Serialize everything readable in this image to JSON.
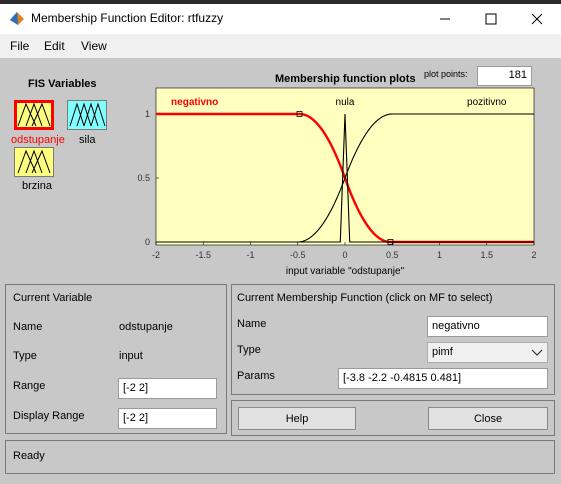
{
  "window": {
    "title": "Membership Function Editor: rtfuzzy"
  },
  "menu": [
    "File",
    "Edit",
    "View"
  ],
  "fis_variables": {
    "heading": "FIS Variables",
    "items": [
      {
        "label": "odstupanje",
        "selected": true
      },
      {
        "label": "sila",
        "selected": false
      },
      {
        "label": "brzina",
        "selected": false
      }
    ]
  },
  "plot": {
    "title": "Membership function plots",
    "plot_points_label": "plot points:",
    "plot_points_value": "181",
    "xlabel": "input variable \"odstupanje\""
  },
  "chart_data": {
    "type": "line",
    "title": "Membership function plots",
    "xlabel": "input variable \"odstupanje\"",
    "xlim": [
      -2,
      2
    ],
    "ylim": [
      0,
      1
    ],
    "xticks": [
      "-2",
      "-1.5",
      "-1",
      "-0.5",
      "0",
      "0.5",
      "1",
      "1.5",
      "2"
    ],
    "yticks": [
      "0",
      "0.5",
      "1"
    ],
    "series": [
      {
        "name": "negativno",
        "mf": "pimf",
        "params": [
          -3.8,
          -2.2,
          -0.4815,
          0.481
        ],
        "color": "#ff0000",
        "selected": true
      },
      {
        "name": "nula",
        "mf": "triangle",
        "params": [
          -0.05,
          0,
          0.05
        ],
        "color": "#000000",
        "selected": false
      },
      {
        "name": "pozitivno",
        "mf": "s-curve",
        "params": [
          -0.5,
          0.5
        ],
        "color": "#000000",
        "selected": false
      }
    ]
  },
  "current_variable": {
    "heading": "Current Variable",
    "name_label": "Name",
    "name_value": "odstupanje",
    "type_label": "Type",
    "type_value": "input",
    "range_label": "Range",
    "range_value": "[-2 2]",
    "display_range_label": "Display Range",
    "display_range_value": "[-2 2]"
  },
  "current_mf": {
    "heading": "Current Membership Function (click on MF to select)",
    "name_label": "Name",
    "name_value": "negativno",
    "type_label": "Type",
    "type_value": "pimf",
    "params_label": "Params",
    "params_value": "[-3.8 -2.2 -0.4815 0.481]"
  },
  "buttons": {
    "help": "Help",
    "close": "Close"
  },
  "status": "Ready",
  "colors": {
    "plot_bg": "#ffffc0",
    "selected_mf": "#ff0000",
    "panel_bg": "#c8c8c8"
  }
}
